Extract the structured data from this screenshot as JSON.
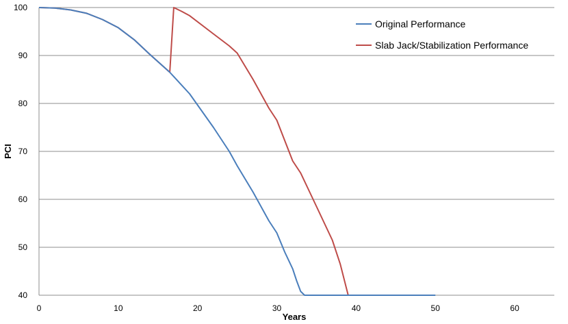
{
  "chart_data": {
    "type": "line",
    "title": "",
    "xlabel": "Years",
    "ylabel": "PCI",
    "xlim": [
      0,
      65
    ],
    "ylim": [
      40,
      100
    ],
    "xticks": [
      "0",
      "10",
      "20",
      "30",
      "40",
      "50",
      "60"
    ],
    "yticks": [
      "40",
      "50",
      "60",
      "70",
      "80",
      "90",
      "100"
    ],
    "grid": "horizontal",
    "legend_position": "top-right",
    "series": [
      {
        "name": "Original Performance",
        "color": "#4a7ebb",
        "x": [
          0,
          2,
          4,
          6,
          8,
          10,
          12,
          14,
          16.5,
          19,
          22,
          24,
          25,
          27,
          29,
          30,
          31,
          32,
          32.5,
          33,
          33.5,
          35,
          40,
          45,
          50
        ],
        "y": [
          100,
          99.9,
          99.5,
          98.8,
          97.5,
          95.8,
          93.3,
          90.2,
          86.5,
          82.0,
          75.0,
          70.0,
          67.0,
          61.5,
          55.5,
          53.0,
          49.0,
          45.5,
          43.0,
          40.8,
          40.0,
          40.0,
          40.0,
          40.0,
          40.0
        ]
      },
      {
        "name": "Slab Jack/Stabilization Performance",
        "color": "#be4b48",
        "x": [
          0,
          2,
          4,
          6,
          8,
          10,
          12,
          14,
          16.5,
          17,
          18,
          19,
          22,
          24,
          25,
          27,
          29,
          30,
          32,
          33,
          34,
          35,
          37,
          38,
          39
        ],
        "y": [
          100,
          99.9,
          99.5,
          98.8,
          97.5,
          95.8,
          93.3,
          90.2,
          86.5,
          100,
          99.2,
          98.3,
          94.5,
          92.0,
          90.5,
          85.0,
          79.0,
          76.5,
          68.0,
          65.5,
          62.0,
          58.5,
          51.5,
          46.5,
          40.0
        ]
      }
    ]
  }
}
